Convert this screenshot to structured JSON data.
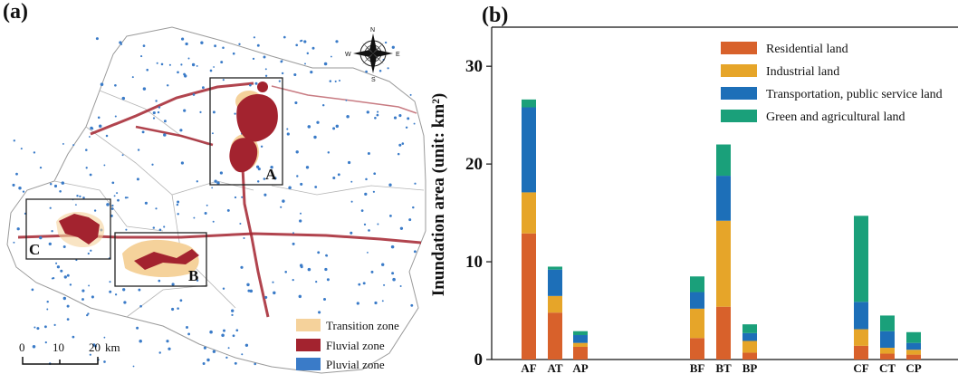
{
  "panels": {
    "a_label": "(a)",
    "b_label": "(b)"
  },
  "map": {
    "legend": [
      {
        "label": "Transition zone",
        "color": "#f5d29b"
      },
      {
        "label": "Fluvial zone",
        "color": "#a3232f"
      },
      {
        "label": "Pluvial zone",
        "color": "#3a7bc8"
      }
    ],
    "box_labels": [
      "A",
      "B",
      "C"
    ],
    "scale_ticks": [
      "0",
      "10",
      "20"
    ],
    "scale_unit": "km",
    "compass": [
      "N",
      "S",
      "W",
      "E"
    ]
  },
  "colors": {
    "residential": "#d8612b",
    "industrial": "#e6a529",
    "transport": "#1d6fb8",
    "green": "#1aa07a"
  },
  "chart_data": {
    "type": "bar",
    "stacked": true,
    "categories": [
      "AF",
      "AT",
      "AP",
      "BF",
      "BT",
      "BP",
      "CF",
      "CT",
      "CP"
    ],
    "series": [
      {
        "name": "Residential land",
        "values": [
          12.9,
          4.8,
          1.3,
          2.2,
          5.4,
          0.7,
          1.4,
          0.6,
          0.5
        ]
      },
      {
        "name": "Industrial land",
        "values": [
          4.2,
          1.7,
          0.4,
          3.0,
          8.8,
          1.2,
          1.7,
          0.6,
          0.5
        ]
      },
      {
        "name": "Transportation, public service land",
        "values": [
          8.7,
          2.7,
          0.8,
          1.7,
          4.6,
          0.8,
          2.8,
          1.7,
          0.7
        ]
      },
      {
        "name": "Green and agricultural land",
        "values": [
          0.8,
          0.3,
          0.4,
          1.6,
          3.2,
          0.9,
          8.8,
          1.6,
          1.1
        ]
      }
    ],
    "ylabel": "Inundation area (unit: km²)",
    "yticks": [
      "0",
      "10",
      "20",
      "30"
    ],
    "ylim": [
      0,
      34
    ],
    "legend_position": "top-right",
    "grid": false
  }
}
